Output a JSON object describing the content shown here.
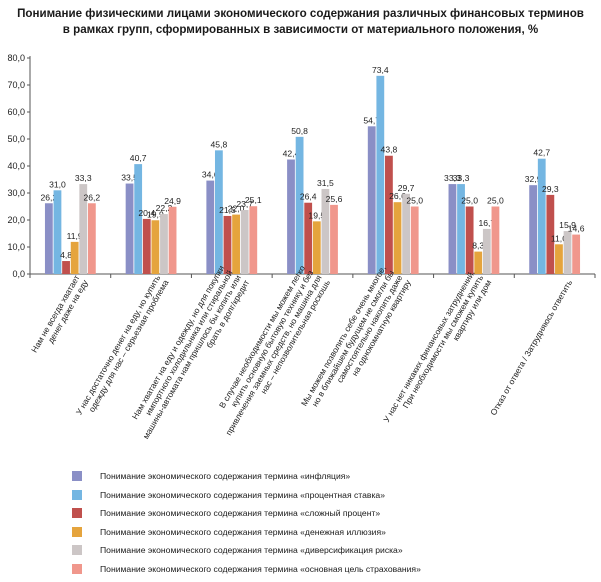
{
  "title_lines": [
    "Понимание физическими лицами экономического содержания различных финансовых терминов",
    "в рамках групп, сформированных в зависимости от материального положения, %"
  ],
  "chart_data": {
    "type": "bar",
    "title": "Понимание физическими лицами экономического содержания различных финансовых терминов в рамках групп, сформированных в зависимости от материального положения, %",
    "ylim": [
      0,
      80
    ],
    "yticks": [
      "0,0",
      "10,0",
      "20,0",
      "30,0",
      "40,0",
      "50,0",
      "60,0",
      "70,0",
      "80,0"
    ],
    "grid": false,
    "legend_position": "bottom",
    "categories": [
      [
        "Нам не всегда хватает",
        "денег даже на еду"
      ],
      [
        "У нас достаточно денег на еду, но купить",
        "одежду для нас – серьезная проблема"
      ],
      [
        "Нам хватает на еду и одежду, но для покупки",
        "импортного холодильника или стиральной",
        "машины-автомата нам пришлось бы копить или",
        "брать в долг/кредит"
      ],
      [
        "В случае необходимости мы можем легко",
        "купить основную бытовую технику и без",
        "привлечения заемных средств, но машина для",
        "нас – непозволительная роскошь"
      ],
      [
        "Мы можем позволить себе очень многое,",
        "но в ближайшем будущем не смогли бы",
        "самостоятельно накопить даже",
        "на однокомнатную квартиру"
      ],
      [
        "У нас нет никаких финансовых затруднений.",
        "При необходимости мы сможем купить",
        "квартиру или дом"
      ],
      [
        "Отказ от ответа / Затрудняюсь ответить"
      ]
    ],
    "series": [
      {
        "name": "Понимание экономического содержания термина «инфляция»",
        "color": "#8a8fc6",
        "values": [
          26.2,
          33.5,
          34.6,
          42.4,
          54.7,
          33.3,
          32.9
        ],
        "labels": [
          "26,2",
          "33,5",
          "34,6",
          "42,4",
          "54,7",
          "33,3",
          "32,9"
        ]
      },
      {
        "name": "Понимание экономического содержания термина «процентная ставка»",
        "color": "#74b6e2",
        "values": [
          31.0,
          40.7,
          45.8,
          50.8,
          73.4,
          33.3,
          42.7
        ],
        "labels": [
          "31,0",
          "40,7",
          "45,8",
          "50,8",
          "73,4",
          "33,3",
          "42,7"
        ]
      },
      {
        "name": "Понимание экономического содержания термина «сложный процент»",
        "color": "#c0504d",
        "values": [
          4.8,
          20.4,
          21.5,
          26.4,
          43.8,
          25.0,
          29.3
        ],
        "labels": [
          "4,8",
          "20,4",
          "21,5",
          "26,4",
          "43,8",
          "25,0",
          "29,3"
        ]
      },
      {
        "name": "Понимание экономического содержания термина «денежная иллюзия»",
        "color": "#e5a43d",
        "values": [
          11.9,
          19.9,
          22.0,
          19.5,
          26.6,
          8.3,
          11.0
        ],
        "labels": [
          "11,9",
          "19,9",
          "22,0",
          "19,5",
          "26,6",
          "8,3",
          "11,0"
        ]
      },
      {
        "name": "Понимание экономического содержания термина «диверсификация риска»",
        "color": "#ccc6c6",
        "values": [
          33.3,
          22.2,
          23.7,
          31.5,
          29.7,
          16.7,
          15.9
        ],
        "labels": [
          "33,3",
          "22,2",
          "23,7",
          "31,5",
          "29,7",
          "16,7",
          "15,9"
        ]
      },
      {
        "name": "Понимание экономического содержания термина «основная цель страхования»",
        "color": "#f0978c",
        "values": [
          26.2,
          24.9,
          25.1,
          25.6,
          25.0,
          25.0,
          14.6
        ],
        "labels": [
          "26,2",
          "24,9",
          "25,1",
          "25,6",
          "25,0",
          "25,0",
          "14,6"
        ]
      }
    ]
  }
}
